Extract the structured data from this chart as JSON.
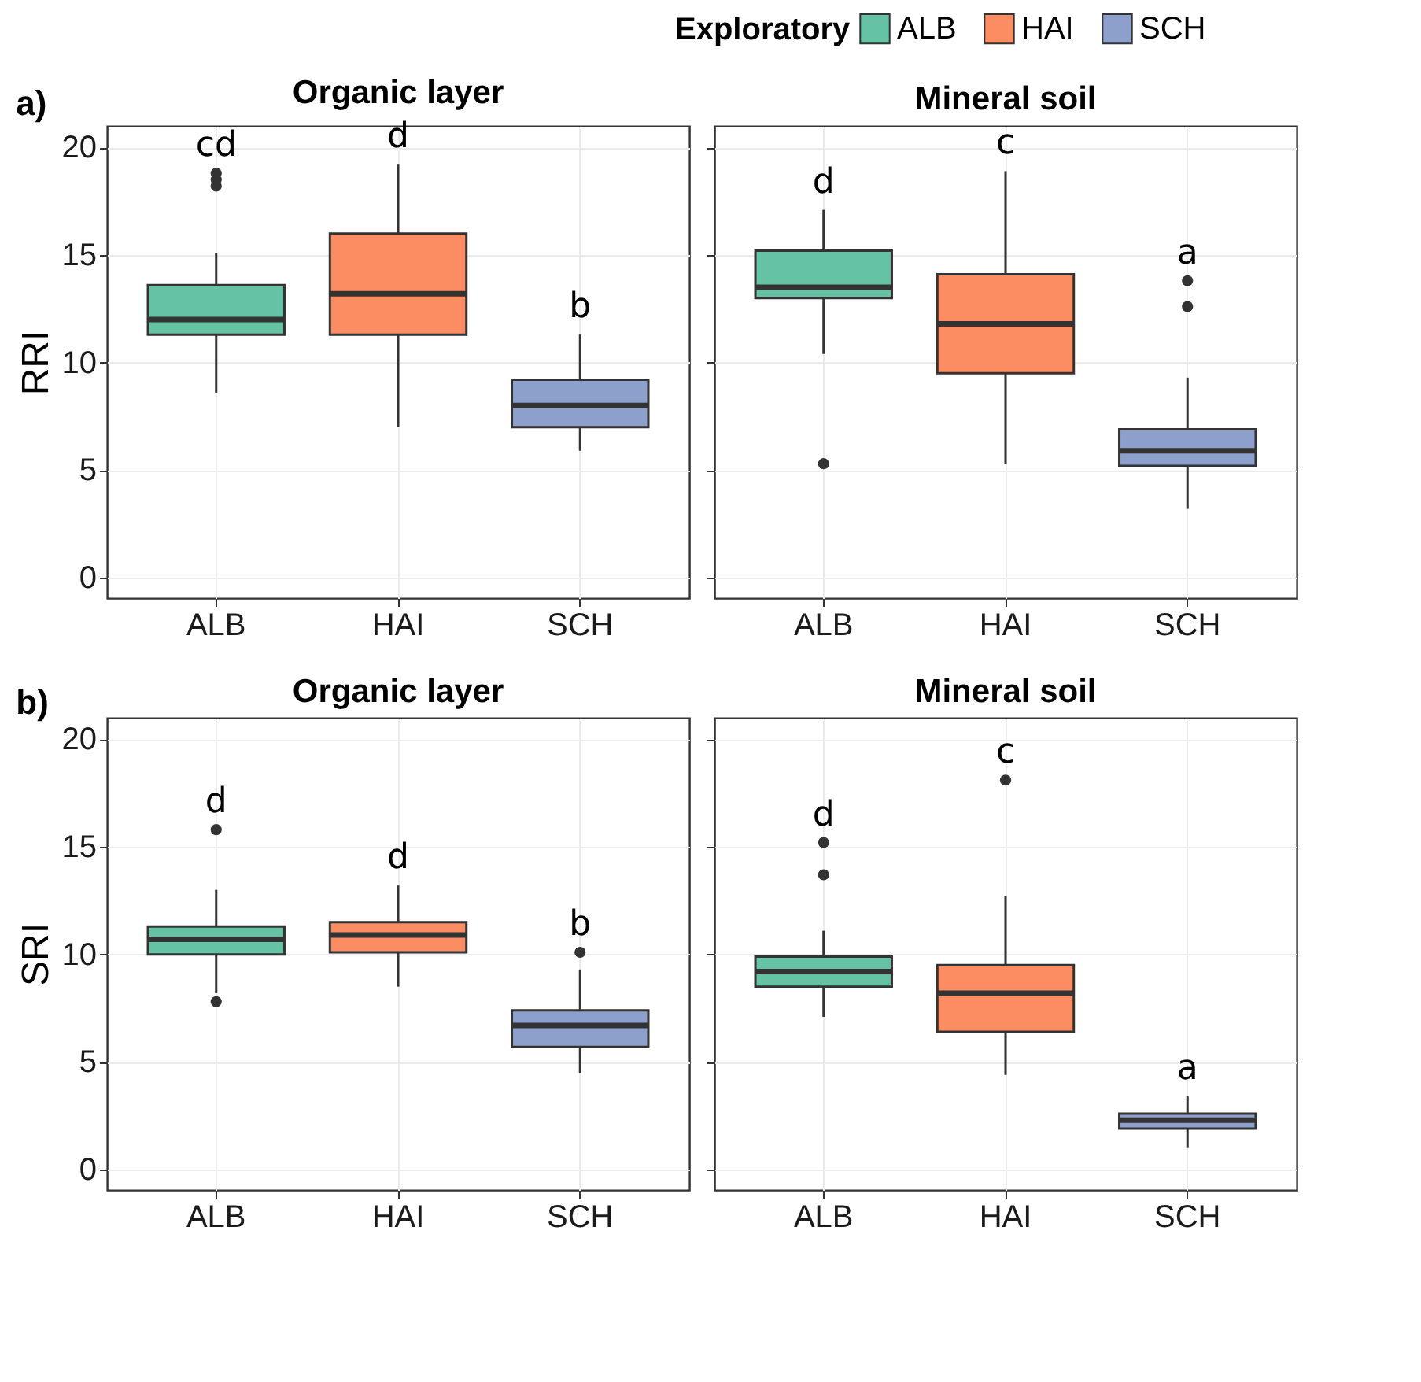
{
  "chart_data": [
    {
      "type": "box",
      "title": "Organic layer",
      "ylabel": "RRI",
      "legend_title": "Exploratory",
      "legend": "top right",
      "grid": true,
      "categories": [
        "ALB",
        "HAI",
        "SCH"
      ],
      "ylim": [
        -0.95,
        21
      ],
      "yticks": [
        0,
        5,
        10,
        15,
        20
      ],
      "series": [
        {
          "name": "ALB",
          "color": "#66c2a5",
          "boxes": [
            {
              "low": 8.6,
              "q1": 11.3,
              "median": 12.0,
              "q3": 13.6,
              "high": 15.1,
              "outliers": [
                18.2,
                18.5,
                18.8
              ]
            },
            null,
            null
          ]
        },
        {
          "name": "HAI",
          "color": "#fc8d62",
          "boxes": [
            null,
            {
              "low": 7.0,
              "q1": 11.3,
              "median": 13.2,
              "q3": 16.0,
              "high": 19.2
            },
            null
          ]
        },
        {
          "name": "SCH",
          "color": "#8da0cb",
          "boxes": [
            null,
            null,
            {
              "low": 5.9,
              "q1": 7.0,
              "median": 8.0,
              "q3": 9.2,
              "high": 11.3
            }
          ]
        }
      ],
      "annotations": [
        "a)",
        "cd",
        "d",
        "b"
      ]
    },
    {
      "type": "box",
      "title": "Mineral soil",
      "grid": true,
      "tick_labels": "x",
      "categories": [
        "ALB",
        "HAI",
        "SCH"
      ],
      "ylim": [
        -0.95,
        21
      ],
      "yticks": [
        0,
        5,
        10,
        15,
        20
      ],
      "series": [
        {
          "color": "#66c2a5",
          "boxes": [
            {
              "low": 10.4,
              "q1": 13.0,
              "median": 13.5,
              "q3": 15.2,
              "high": 17.1,
              "outliers": [
                5.3
              ]
            },
            null,
            null
          ]
        },
        {
          "color": "#fc8d62",
          "boxes": [
            null,
            {
              "low": 5.3,
              "q1": 9.5,
              "median": 11.8,
              "q3": 14.1,
              "high": 18.9
            },
            null
          ]
        },
        {
          "color": "#8da0cb",
          "boxes": [
            null,
            null,
            {
              "low": 3.2,
              "q1": 5.2,
              "median": 5.9,
              "q3": 6.9,
              "high": 9.3,
              "outliers": [
                12.6,
                13.8
              ]
            }
          ]
        }
      ],
      "annotations": [
        "d",
        "c",
        "a"
      ]
    },
    {
      "type": "box",
      "title": "Organic layer",
      "ylabel": "SRI",
      "grid": true,
      "categories": [
        "ALB",
        "HAI",
        "SCH"
      ],
      "ylim": [
        -0.95,
        21
      ],
      "yticks": [
        0,
        5,
        10,
        15,
        20
      ],
      "series": [
        {
          "color": "#66c2a5",
          "boxes": [
            {
              "low": 8.2,
              "q1": 10.0,
              "median": 10.7,
              "q3": 11.3,
              "high": 13.0,
              "outliers": [
                7.8,
                15.8
              ]
            },
            null,
            null
          ]
        },
        {
          "color": "#fc8d62",
          "boxes": [
            null,
            {
              "low": 8.5,
              "q1": 10.1,
              "median": 10.9,
              "q3": 11.5,
              "high": 13.2
            },
            null
          ]
        },
        {
          "color": "#8da0cb",
          "boxes": [
            null,
            null,
            {
              "low": 4.5,
              "q1": 5.7,
              "median": 6.7,
              "q3": 7.4,
              "high": 9.3,
              "outliers": [
                10.1
              ]
            }
          ]
        }
      ],
      "annotations": [
        "b)",
        "d",
        "d",
        "b"
      ]
    },
    {
      "type": "box",
      "title": "Mineral soil",
      "grid": true,
      "tick_labels": "x",
      "categories": [
        "ALB",
        "HAI",
        "SCH"
      ],
      "ylim": [
        -0.95,
        21
      ],
      "yticks": [
        0,
        5,
        10,
        15,
        20
      ],
      "series": [
        {
          "color": "#66c2a5",
          "boxes": [
            {
              "low": 7.1,
              "q1": 8.5,
              "median": 9.2,
              "q3": 9.9,
              "high": 11.1,
              "outliers": [
                13.7,
                15.2
              ]
            },
            null,
            null
          ]
        },
        {
          "color": "#fc8d62",
          "boxes": [
            null,
            {
              "low": 4.4,
              "q1": 6.4,
              "median": 8.2,
              "q3": 9.5,
              "high": 12.7,
              "outliers": [
                18.1
              ]
            },
            null
          ]
        },
        {
          "color": "#8da0cb",
          "boxes": [
            null,
            null,
            {
              "low": 1.0,
              "q1": 1.9,
              "median": 2.3,
              "q3": 2.6,
              "high": 3.4
            }
          ]
        }
      ],
      "annotations": [
        "d",
        "c",
        "a"
      ]
    }
  ]
}
